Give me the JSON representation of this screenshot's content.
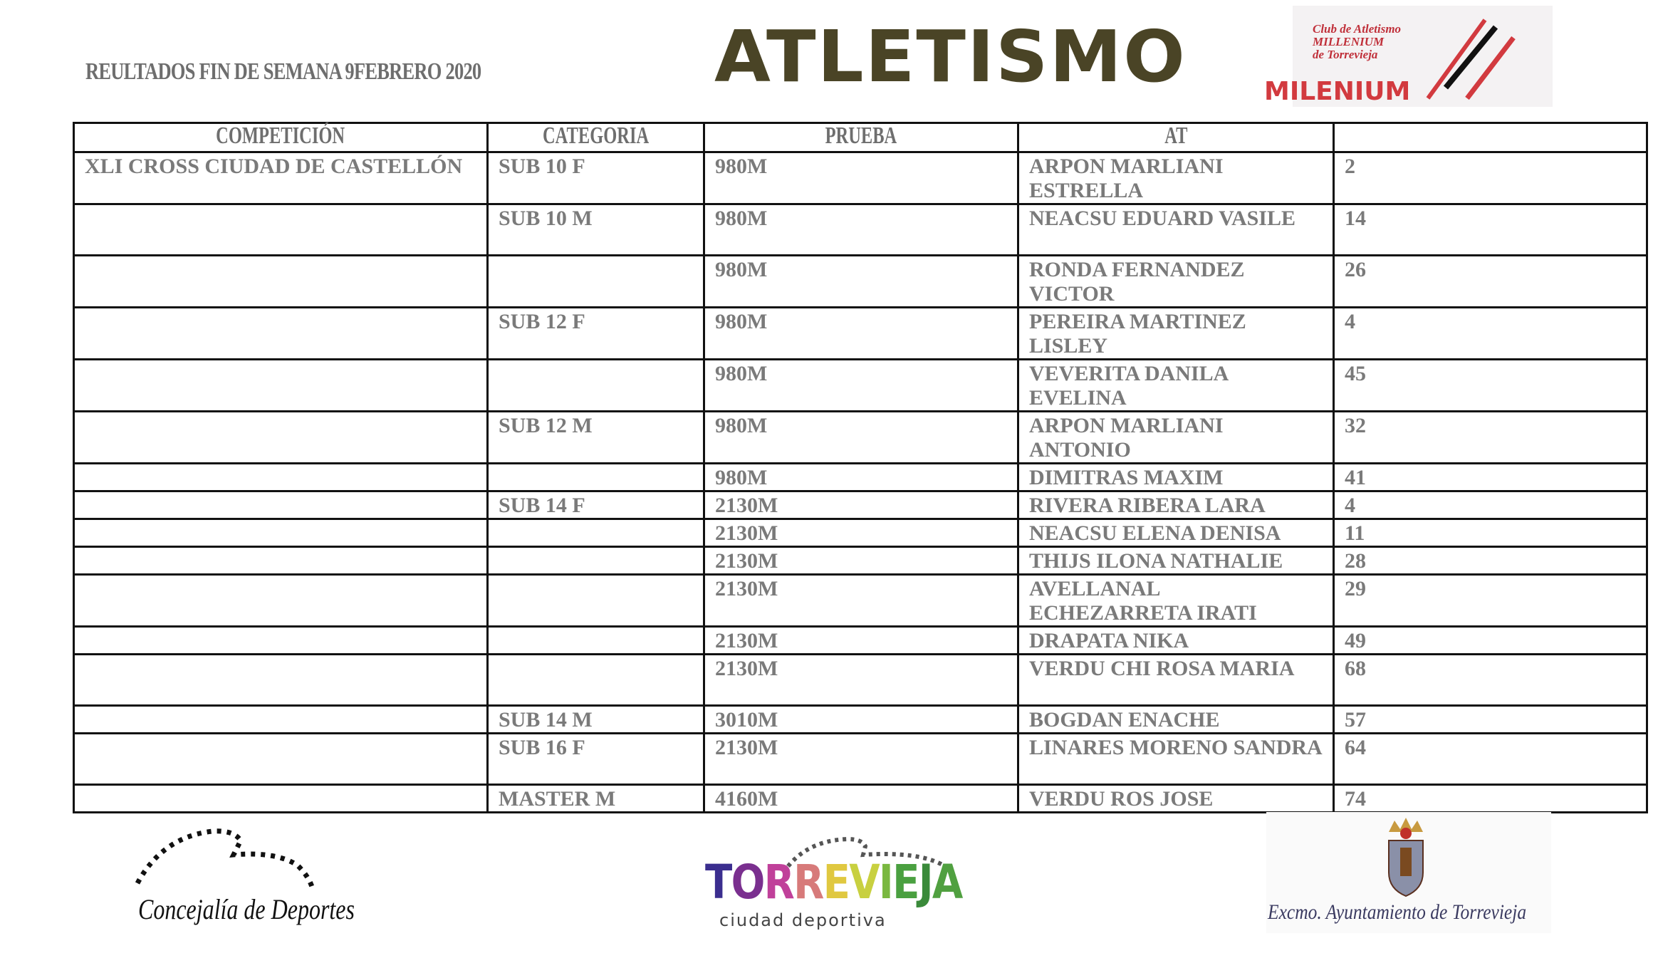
{
  "header": {
    "title": "REULTADOS FIN DE SEMANA 9FEBRERO 2020",
    "brand": "ATLETISMO",
    "logo": {
      "club_text": [
        "Club de Atletismo",
        "MILLENIUM",
        "de Torrevieja"
      ],
      "name": "MILENIUM"
    }
  },
  "table": {
    "columns": [
      "COMPETICIÓN",
      "CATEGORIA",
      "PRUEBA",
      "AT",
      ""
    ],
    "rows": [
      {
        "competicion": "XLI CROSS CIUDAD DE CASTELLÓN",
        "categoria": "SUB 10  F",
        "prueba": "980M",
        "atleta": "ARPON MARLIANI ESTRELLA",
        "puesto": "2",
        "lines": 2
      },
      {
        "competicion": "",
        "categoria": "SUB 10  M",
        "prueba": "980M",
        "atleta": "NEACSU EDUARD VASILE",
        "puesto": "14",
        "lines": 2
      },
      {
        "competicion": "",
        "categoria": "",
        "prueba": "980M",
        "atleta": "RONDA FERNANDEZ VICTOR",
        "puesto": "26",
        "lines": 2
      },
      {
        "competicion": "",
        "categoria": "SUB 12  F",
        "prueba": "980M",
        "atleta": "PEREIRA MARTINEZ LISLEY",
        "puesto": "4",
        "lines": 2
      },
      {
        "competicion": "",
        "categoria": "",
        "prueba": "980M",
        "atleta": "VEVERITA DANILA EVELINA",
        "puesto": "45",
        "lines": 2
      },
      {
        "competicion": "",
        "categoria": "SUB 12  M",
        "prueba": "980M",
        "atleta": "ARPON MARLIANI ANTONIO",
        "puesto": "32",
        "lines": 2
      },
      {
        "competicion": "",
        "categoria": "",
        "prueba": "980M",
        "atleta": "DIMITRAS MAXIM",
        "puesto": "41",
        "lines": 1
      },
      {
        "competicion": "",
        "categoria": "SUB 14 F",
        "prueba": "2130M",
        "atleta": "RIVERA RIBERA LARA",
        "puesto": "4",
        "lines": 1
      },
      {
        "competicion": "",
        "categoria": "",
        "prueba": "2130M",
        "atleta": "NEACSU ELENA DENISA",
        "puesto": "11",
        "lines": 1
      },
      {
        "competicion": "",
        "categoria": "",
        "prueba": "2130M",
        "atleta": "THIJS ILONA NATHALIE",
        "puesto": "28",
        "lines": 1
      },
      {
        "competicion": "",
        "categoria": "",
        "prueba": "2130M",
        "atleta": "AVELLANAL ECHEZARRETA IRATI",
        "puesto": "29",
        "lines": 2
      },
      {
        "competicion": "",
        "categoria": "",
        "prueba": "2130M",
        "atleta": "DRAPATA NIKA",
        "puesto": "49",
        "lines": 1
      },
      {
        "competicion": "",
        "categoria": "",
        "prueba": "2130M",
        "atleta": "VERDU CHI ROSA MARIA",
        "puesto": "68",
        "lines": 2
      },
      {
        "competicion": "",
        "categoria": "SUB 14  M",
        "prueba": "3010M",
        "atleta": "BOGDAN ENACHE",
        "puesto": "57",
        "lines": 1
      },
      {
        "competicion": "",
        "categoria": "SUB 16  F",
        "prueba": "2130M",
        "atleta": "LINARES MORENO SANDRA",
        "puesto": "64",
        "lines": 2
      },
      {
        "competicion": "",
        "categoria": "MASTER  M",
        "prueba": "4160M",
        "atleta": "VERDU ROS JOSE",
        "puesto": "74",
        "lines": 1
      }
    ]
  },
  "footer": {
    "concejalia": "Concejalía de Deportes",
    "torrevieja": {
      "word": "TORREVIEJA",
      "sub": "ciudad deportiva",
      "colors": [
        "#3b2e8f",
        "#7a2f8f",
        "#c0409a",
        "#d77a7a",
        "#e0c840",
        "#c8d040",
        "#7ab840",
        "#4aa040",
        "#3a8a3a",
        "#50a040"
      ]
    },
    "ayuntamiento": "Excmo. Ayuntamiento de Torrevieja"
  }
}
